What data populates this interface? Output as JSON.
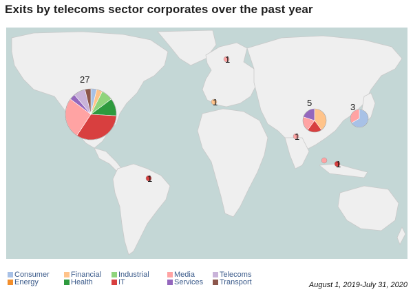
{
  "title": "Exits by telecoms sector corporates over the past year",
  "date_range": "August 1, 2019-July 31, 2020",
  "colors": {
    "ocean": "#c4d7d6",
    "land": "#efefef",
    "border": "#c9c9c9"
  },
  "sectors": [
    {
      "name": "Consumer",
      "color": "#a8c1e6"
    },
    {
      "name": "Energy",
      "color": "#f28e2c"
    },
    {
      "name": "Financial",
      "color": "#ffc38a"
    },
    {
      "name": "Health",
      "color": "#2e9a3e"
    },
    {
      "name": "Industrial",
      "color": "#8fd47c"
    },
    {
      "name": "IT",
      "color": "#d83f3f"
    },
    {
      "name": "Media",
      "color": "#ffa3a3"
    },
    {
      "name": "Services",
      "color": "#9467bd"
    },
    {
      "name": "Telecoms",
      "color": "#c9b3d9"
    },
    {
      "name": "Transport",
      "color": "#8c564b"
    }
  ],
  "bubbles": [
    {
      "id": "north-america",
      "count": "27",
      "total": 27,
      "slices": [
        {
          "sector": "Consumer",
          "value": 1
        },
        {
          "sector": "Financial",
          "value": 1
        },
        {
          "sector": "Industrial",
          "value": 2
        },
        {
          "sector": "Health",
          "value": 3
        },
        {
          "sector": "IT",
          "value": 9
        },
        {
          "sector": "Media",
          "value": 7
        },
        {
          "sector": "Services",
          "value": 1
        },
        {
          "sector": "Telecoms",
          "value": 2
        },
        {
          "sector": "Transport",
          "value": 1
        }
      ]
    },
    {
      "id": "scandinavia",
      "count": "1",
      "total": 1,
      "slices": [
        {
          "sector": "Media",
          "value": 1
        }
      ]
    },
    {
      "id": "western-europe",
      "count": "1",
      "total": 1,
      "slices": [
        {
          "sector": "Financial",
          "value": 1
        }
      ]
    },
    {
      "id": "china",
      "count": "5",
      "total": 5,
      "slices": [
        {
          "sector": "Financial",
          "value": 2
        },
        {
          "sector": "IT",
          "value": 1
        },
        {
          "sector": "Media",
          "value": 1
        },
        {
          "sector": "Services",
          "value": 1
        }
      ]
    },
    {
      "id": "japan",
      "count": "3",
      "total": 3,
      "slices": [
        {
          "sector": "Consumer",
          "value": 2
        },
        {
          "sector": "Media",
          "value": 1
        }
      ]
    },
    {
      "id": "india",
      "count": "1",
      "total": 1,
      "slices": [
        {
          "sector": "Media",
          "value": 1
        }
      ]
    },
    {
      "id": "southeast-asia",
      "count": "",
      "total": 1,
      "slices": [
        {
          "sector": "Media",
          "value": 1
        }
      ]
    },
    {
      "id": "indonesia",
      "count": "1",
      "total": 1,
      "slices": [
        {
          "sector": "IT",
          "value": 1
        }
      ]
    },
    {
      "id": "brazil",
      "count": "1",
      "total": 1,
      "slices": [
        {
          "sector": "IT",
          "value": 1
        }
      ]
    }
  ]
}
